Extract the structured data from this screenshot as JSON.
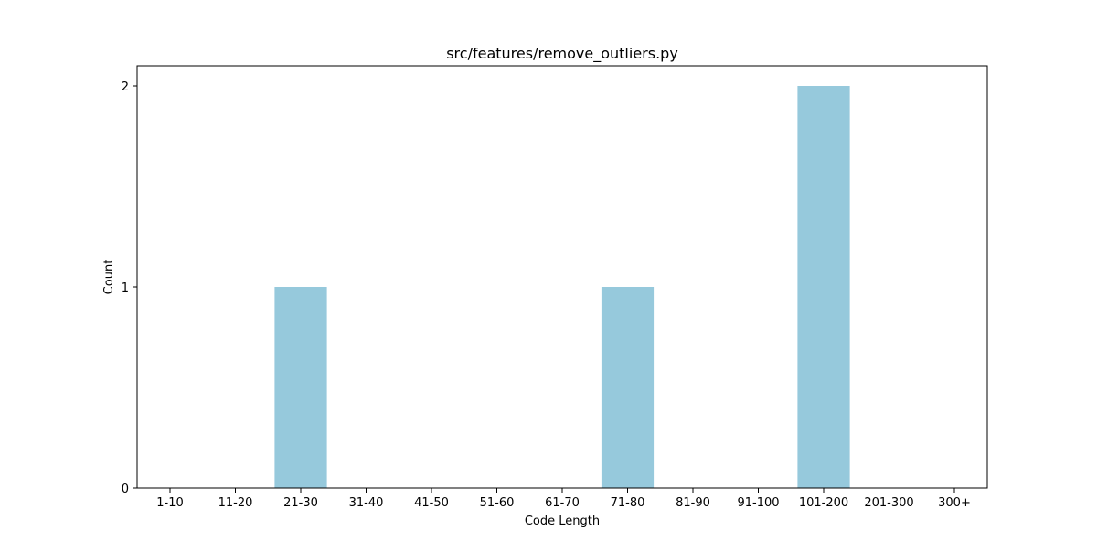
{
  "chart_data": {
    "type": "bar",
    "title": "src/features/remove_outliers.py",
    "xlabel": "Code Length",
    "ylabel": "Count",
    "categories": [
      "1-10",
      "11-20",
      "21-30",
      "31-40",
      "41-50",
      "51-60",
      "61-70",
      "71-80",
      "81-90",
      "91-100",
      "101-200",
      "201-300",
      "300+"
    ],
    "values": [
      0,
      0,
      1,
      0,
      0,
      0,
      0,
      1,
      0,
      0,
      2,
      0,
      0
    ],
    "ylim": [
      0,
      2.1
    ],
    "yticks": [
      0,
      1,
      2
    ],
    "bar_color": "#96c9dc",
    "grid": false,
    "legend": "none"
  }
}
